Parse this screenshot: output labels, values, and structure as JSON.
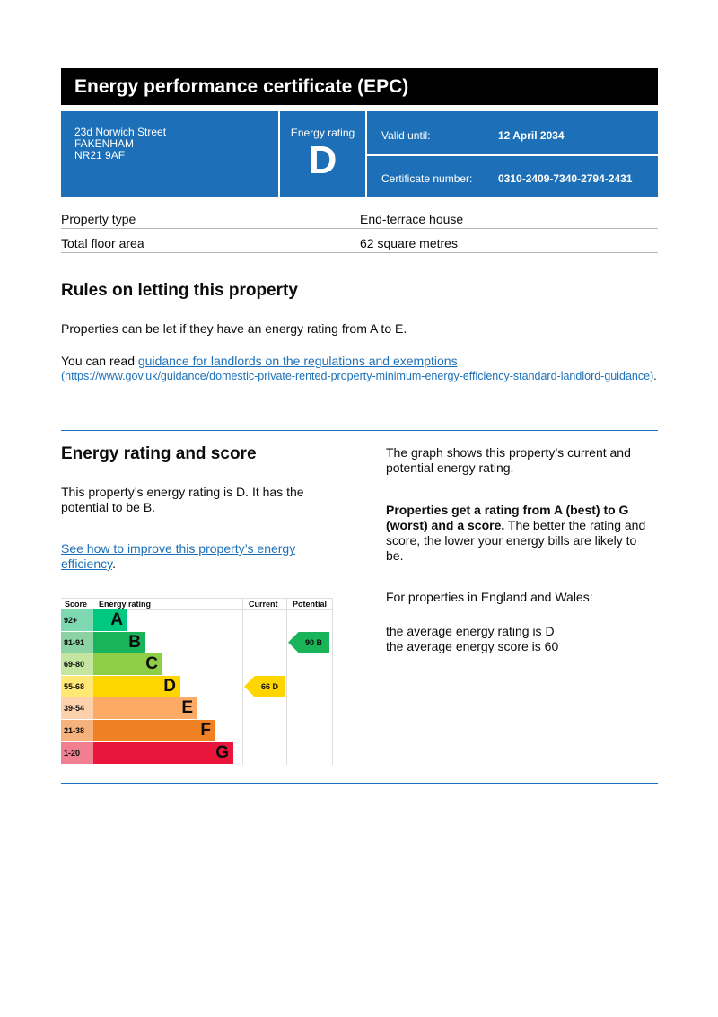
{
  "header": {
    "title": "Energy performance certificate (EPC)"
  },
  "address": {
    "line1": "23d Norwich Street",
    "line2": "FAKENHAM",
    "line3": "NR21 9AF"
  },
  "rating_box": {
    "label": "Energy rating",
    "value": "D"
  },
  "valid": {
    "label": "Valid until:",
    "value": "12 April 2034"
  },
  "certificate": {
    "label": "Certificate number:",
    "value": "0310-2409-7340-2794-2431"
  },
  "property": [
    {
      "label": "Property type",
      "value": "End-terrace house"
    },
    {
      "label": "Total floor area",
      "value": "62 square metres"
    }
  ],
  "letting": {
    "heading": "Rules on letting this property",
    "p1": "Properties can be let if they have an energy rating from A to E.",
    "p2_prefix": "You can read ",
    "p2_link": "guidance for landlords on the regulations and exemptions",
    "p2_url": "(https://www.gov.uk/guidance/domestic-private-rented-property-minimum-energy-efficiency-standard-landlord-guidance)",
    "p2_suffix": "."
  },
  "score_section": {
    "heading": "Energy rating and score",
    "p1": "This property’s energy rating is D. It has the potential to be B.",
    "link": "See how to improve this property’s energy efficiency",
    "link_suffix": ".",
    "r1": "The graph shows this property’s current and potential energy rating.",
    "r2_bold": "Properties get a rating from A (best) to G (worst) and a score.",
    "r2_rest": " The better the rating and score, the lower your energy bills are likely to be.",
    "r3": "For properties in England and Wales:",
    "r4": "the average energy rating is D",
    "r5": "the average energy score is 60"
  },
  "chart_data": {
    "type": "table",
    "headers": [
      "Score",
      "Energy rating",
      "Current",
      "Potential"
    ],
    "bands": [
      {
        "score": "92+",
        "letter": "A",
        "color": "#00c781",
        "light": "#7fd9b0"
      },
      {
        "score": "81-91",
        "letter": "B",
        "color": "#19b459",
        "light": "#8cd3a4"
      },
      {
        "score": "69-80",
        "letter": "C",
        "color": "#8dce46",
        "light": "#c5e6a0"
      },
      {
        "score": "55-68",
        "letter": "D",
        "color": "#ffd500",
        "light": "#ffe873"
      },
      {
        "score": "39-54",
        "letter": "E",
        "color": "#fcaa65",
        "light": "#fdd1ac"
      },
      {
        "score": "21-38",
        "letter": "F",
        "color": "#ef8023",
        "light": "#f5b27c"
      },
      {
        "score": "1-20",
        "letter": "G",
        "color": "#e9153b",
        "light": "#f07f92"
      }
    ],
    "current": {
      "score": 66,
      "letter": "D",
      "label": "66  D"
    },
    "potential": {
      "score": 90,
      "letter": "B",
      "label": "90  B"
    }
  }
}
